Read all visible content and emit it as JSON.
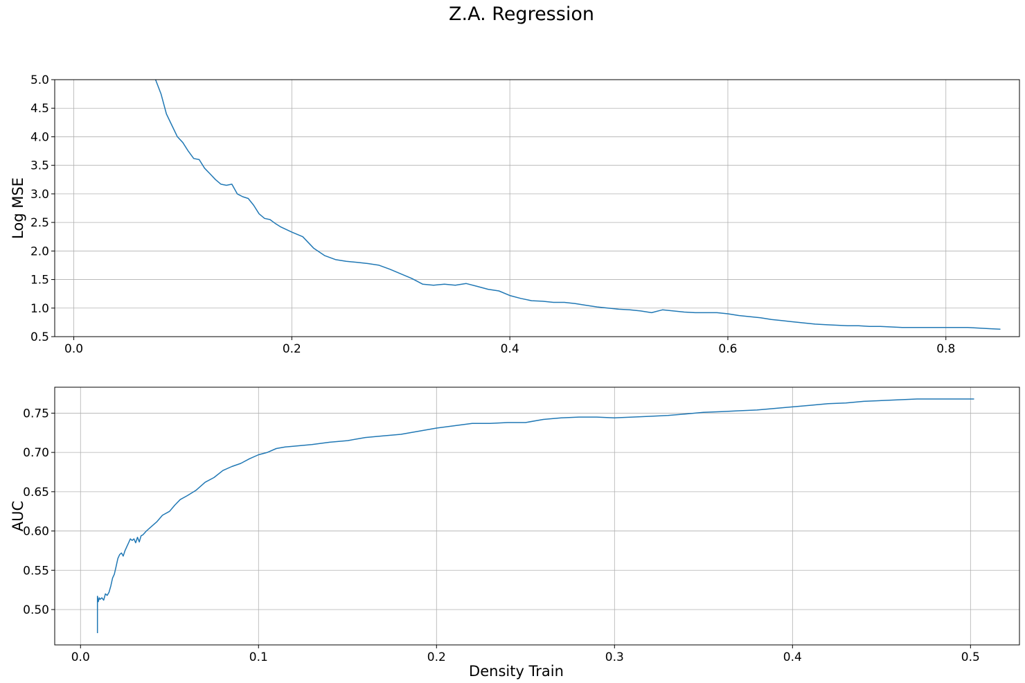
{
  "figure": {
    "title": "Z.A. Regression"
  },
  "colors": {
    "line": "#1f77b4",
    "grid": "#b0b0b0",
    "frame": "#000000"
  },
  "chart_data": [
    {
      "type": "line",
      "title": "",
      "xlabel": "",
      "ylabel": "Log MSE",
      "xlim": [
        -0.0175,
        0.8675
      ],
      "ylim": [
        0.5,
        5.0
      ],
      "xticks": [
        0.0,
        0.2,
        0.4,
        0.6,
        0.8
      ],
      "xtick_labels": [
        "0.0",
        "0.2",
        "0.4",
        "0.6",
        "0.8"
      ],
      "yticks": [
        0.5,
        1.0,
        1.5,
        2.0,
        2.5,
        3.0,
        3.5,
        4.0,
        4.5,
        5.0
      ],
      "ytick_labels": [
        "0.5",
        "1.0",
        "1.5",
        "2.0",
        "2.5",
        "3.0",
        "3.5",
        "4.0",
        "4.5",
        "5.0"
      ],
      "grid": true,
      "legend": "none",
      "series": [
        {
          "x": [
            0.075,
            0.08,
            0.085,
            0.09,
            0.095,
            0.1,
            0.105,
            0.11,
            0.115,
            0.12,
            0.125,
            0.13,
            0.135,
            0.14,
            0.145,
            0.15,
            0.155,
            0.16,
            0.165,
            0.17,
            0.175,
            0.18,
            0.185,
            0.19,
            0.2,
            0.21,
            0.22,
            0.23,
            0.24,
            0.25,
            0.26,
            0.27,
            0.28,
            0.29,
            0.3,
            0.31,
            0.32,
            0.33,
            0.34,
            0.35,
            0.36,
            0.37,
            0.38,
            0.39,
            0.4,
            0.41,
            0.42,
            0.43,
            0.44,
            0.45,
            0.46,
            0.47,
            0.48,
            0.49,
            0.5,
            0.51,
            0.52,
            0.53,
            0.54,
            0.55,
            0.56,
            0.57,
            0.58,
            0.59,
            0.6,
            0.61,
            0.62,
            0.63,
            0.64,
            0.65,
            0.66,
            0.67,
            0.68,
            0.69,
            0.7,
            0.71,
            0.72,
            0.73,
            0.74,
            0.75,
            0.76,
            0.77,
            0.78,
            0.79,
            0.8,
            0.81,
            0.82,
            0.83,
            0.84,
            0.85
          ],
          "y": [
            5.0,
            4.75,
            4.4,
            4.2,
            4.0,
            3.9,
            3.75,
            3.62,
            3.6,
            3.45,
            3.35,
            3.25,
            3.17,
            3.15,
            3.17,
            3.0,
            2.95,
            2.92,
            2.8,
            2.65,
            2.57,
            2.55,
            2.48,
            2.42,
            2.33,
            2.25,
            2.05,
            1.92,
            1.85,
            1.82,
            1.8,
            1.78,
            1.75,
            1.68,
            1.6,
            1.52,
            1.42,
            1.4,
            1.42,
            1.4,
            1.43,
            1.38,
            1.33,
            1.3,
            1.22,
            1.17,
            1.13,
            1.12,
            1.1,
            1.1,
            1.08,
            1.05,
            1.02,
            1.0,
            0.98,
            0.97,
            0.95,
            0.92,
            0.97,
            0.95,
            0.93,
            0.92,
            0.92,
            0.92,
            0.9,
            0.87,
            0.85,
            0.83,
            0.8,
            0.78,
            0.76,
            0.74,
            0.72,
            0.71,
            0.7,
            0.69,
            0.69,
            0.68,
            0.68,
            0.67,
            0.66,
            0.66,
            0.66,
            0.66,
            0.66,
            0.66,
            0.66,
            0.65,
            0.64,
            0.63
          ]
        }
      ]
    },
    {
      "type": "line",
      "title": "",
      "xlabel": "Density Train",
      "ylabel": "AUC",
      "xlim": [
        -0.0145,
        0.5275
      ],
      "ylim": [
        0.455,
        0.783
      ],
      "xticks": [
        0.0,
        0.1,
        0.2,
        0.3,
        0.4,
        0.5
      ],
      "xtick_labels": [
        "0.0",
        "0.1",
        "0.2",
        "0.3",
        "0.4",
        "0.5"
      ],
      "yticks": [
        0.5,
        0.55,
        0.6,
        0.65,
        0.7,
        0.75
      ],
      "ytick_labels": [
        "0.50",
        "0.55",
        "0.60",
        "0.65",
        "0.70",
        "0.75"
      ],
      "grid": true,
      "legend": "none",
      "series": [
        {
          "x": [
            0.0095,
            0.0095,
            0.01,
            0.0105,
            0.011,
            0.012,
            0.013,
            0.014,
            0.015,
            0.016,
            0.017,
            0.018,
            0.019,
            0.02,
            0.021,
            0.022,
            0.023,
            0.024,
            0.025,
            0.026,
            0.027,
            0.028,
            0.029,
            0.03,
            0.031,
            0.032,
            0.033,
            0.034,
            0.035,
            0.037,
            0.04,
            0.043,
            0.046,
            0.05,
            0.053,
            0.056,
            0.06,
            0.065,
            0.07,
            0.075,
            0.08,
            0.085,
            0.09,
            0.095,
            0.1,
            0.105,
            0.11,
            0.115,
            0.12,
            0.13,
            0.14,
            0.15,
            0.16,
            0.17,
            0.18,
            0.19,
            0.2,
            0.21,
            0.22,
            0.23,
            0.24,
            0.25,
            0.26,
            0.27,
            0.28,
            0.29,
            0.3,
            0.31,
            0.32,
            0.33,
            0.34,
            0.35,
            0.36,
            0.37,
            0.38,
            0.39,
            0.4,
            0.41,
            0.42,
            0.43,
            0.44,
            0.45,
            0.46,
            0.47,
            0.48,
            0.49,
            0.502
          ],
          "y": [
            0.47,
            0.517,
            0.51,
            0.515,
            0.513,
            0.515,
            0.512,
            0.52,
            0.518,
            0.522,
            0.53,
            0.54,
            0.545,
            0.555,
            0.565,
            0.57,
            0.572,
            0.568,
            0.575,
            0.58,
            0.585,
            0.59,
            0.588,
            0.59,
            0.585,
            0.592,
            0.586,
            0.594,
            0.595,
            0.6,
            0.606,
            0.612,
            0.62,
            0.625,
            0.633,
            0.64,
            0.645,
            0.652,
            0.662,
            0.668,
            0.677,
            0.682,
            0.686,
            0.692,
            0.697,
            0.7,
            0.705,
            0.707,
            0.708,
            0.71,
            0.713,
            0.715,
            0.719,
            0.721,
            0.723,
            0.727,
            0.731,
            0.734,
            0.737,
            0.737,
            0.738,
            0.738,
            0.742,
            0.744,
            0.745,
            0.745,
            0.744,
            0.745,
            0.746,
            0.747,
            0.749,
            0.751,
            0.752,
            0.753,
            0.754,
            0.756,
            0.758,
            0.76,
            0.762,
            0.763,
            0.765,
            0.766,
            0.767,
            0.768,
            0.768,
            0.768,
            0.768
          ]
        }
      ]
    }
  ]
}
